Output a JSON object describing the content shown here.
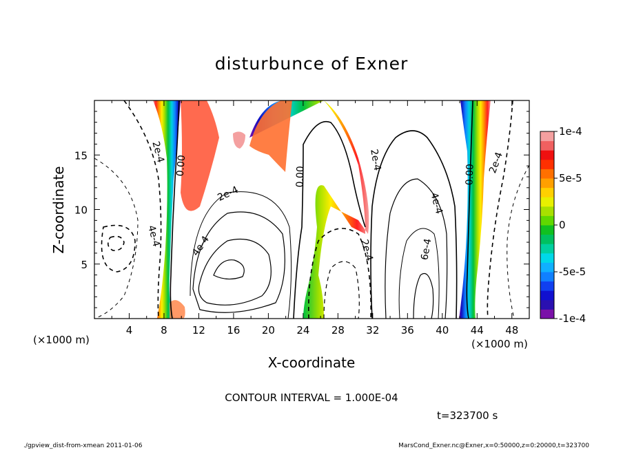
{
  "chart_data": {
    "type": "heatmap",
    "title": "disturbunce of Exner",
    "xlabel": "X-coordinate",
    "ylabel": "Z-coordinate",
    "x_unit": "(×1000 m)",
    "y_unit": "(×1000 m)",
    "xlim": [
      0,
      50
    ],
    "ylim": [
      0,
      20
    ],
    "x_ticks": [
      "4",
      "8",
      "12",
      "16",
      "20",
      "24",
      "28",
      "32",
      "36",
      "40",
      "44",
      "48"
    ],
    "y_ticks": [
      "5",
      "10",
      "15"
    ],
    "colorbar": {
      "min": -0.0001,
      "max": 0.0001,
      "tick_labels": [
        "1e-4",
        "5e-5",
        "0",
        "-5e-5",
        "-1e-4"
      ]
    },
    "contour_labels": [
      "2e-4",
      "0.00",
      "2e-4",
      "4e-4",
      "0.00",
      "2e-4",
      "2e-4",
      "4e-4",
      "6e-4",
      "0.00",
      "2e-4",
      "4e-4"
    ],
    "contour_interval_text": "CONTOUR INTERVAL = 1.000E-04",
    "time_text": "t=323700  s",
    "footer_left": "./gpview_dist-from-xmean  2011-01-06",
    "footer_right": "MarsCond_Exner.nc@Exner,x=0:50000,z=0:20000,t=323700"
  }
}
